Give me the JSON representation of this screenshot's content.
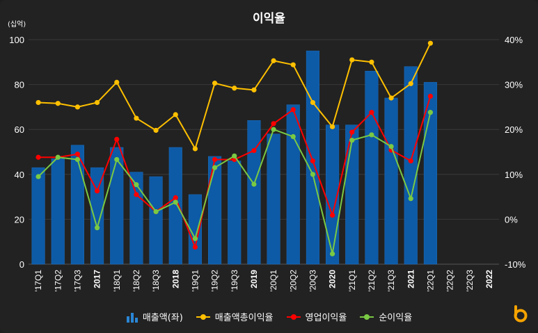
{
  "chart_data": {
    "type": "bar+line",
    "title": "이익율",
    "unit_label": "(십억)",
    "categories": [
      "'17Q1",
      "'17Q2",
      "'17Q3",
      "2017",
      "'18Q1",
      "'18Q2",
      "'18Q3",
      "2018",
      "'19Q1",
      "'19Q2",
      "'19Q3",
      "2019",
      "'20Q1",
      "'20Q2",
      "'20Q3",
      "2020",
      "'21Q1",
      "'21Q2",
      "'21Q3",
      "2021",
      "'22Q1",
      "'22Q2",
      "'22Q3",
      "2022"
    ],
    "bold_categories": [
      "2017",
      "2018",
      "2019",
      "2020",
      "2021",
      "2022"
    ],
    "y_left": {
      "ticks": [
        "0",
        "20",
        "40",
        "60",
        "80",
        "100"
      ],
      "min": 0,
      "max": 100
    },
    "y_right": {
      "ticks": [
        "-10%",
        "0%",
        "10%",
        "20%",
        "30%",
        "40%"
      ],
      "min": -10,
      "max": 40
    },
    "bars": {
      "name": "매출액(좌)",
      "color": "#0d5aa7",
      "values": [
        43,
        47,
        53,
        43,
        52,
        41,
        39,
        52,
        31,
        48,
        46,
        64,
        58,
        71,
        95,
        62,
        62,
        86,
        74,
        88,
        81,
        null,
        null,
        null
      ]
    },
    "series": [
      {
        "name": "매출액총이익율",
        "color": "#ffc000",
        "values": [
          26,
          25.8,
          25,
          26,
          30.5,
          22.5,
          19.8,
          23.3,
          15.7,
          30.3,
          29.2,
          28.8,
          35.3,
          34.4,
          26,
          20.6,
          35.5,
          35,
          27,
          30.2,
          39.2,
          null,
          null,
          null
        ]
      },
      {
        "name": "영업이익율",
        "color": "#ff0000",
        "values": [
          13.8,
          13.8,
          14.5,
          6.3,
          17.8,
          5.5,
          1.7,
          4.8,
          -6.2,
          13.3,
          13.3,
          15.3,
          21.3,
          24.4,
          13,
          0.9,
          19.4,
          23.8,
          15.4,
          13,
          27.4,
          null,
          null,
          null
        ]
      },
      {
        "name": "순이익율",
        "color": "#7ac943",
        "values": [
          9.5,
          13.8,
          13.3,
          -1.9,
          13.3,
          7.7,
          1.7,
          3.8,
          -4.3,
          11.5,
          14.1,
          7.8,
          20,
          18.4,
          10,
          -7.7,
          17.6,
          18.8,
          16.2,
          4.6,
          23.8,
          null,
          null,
          null
        ]
      }
    ],
    "legend": [
      "매출액(좌)",
      "매출액총이익율",
      "영업이익율",
      "순이익율"
    ]
  }
}
